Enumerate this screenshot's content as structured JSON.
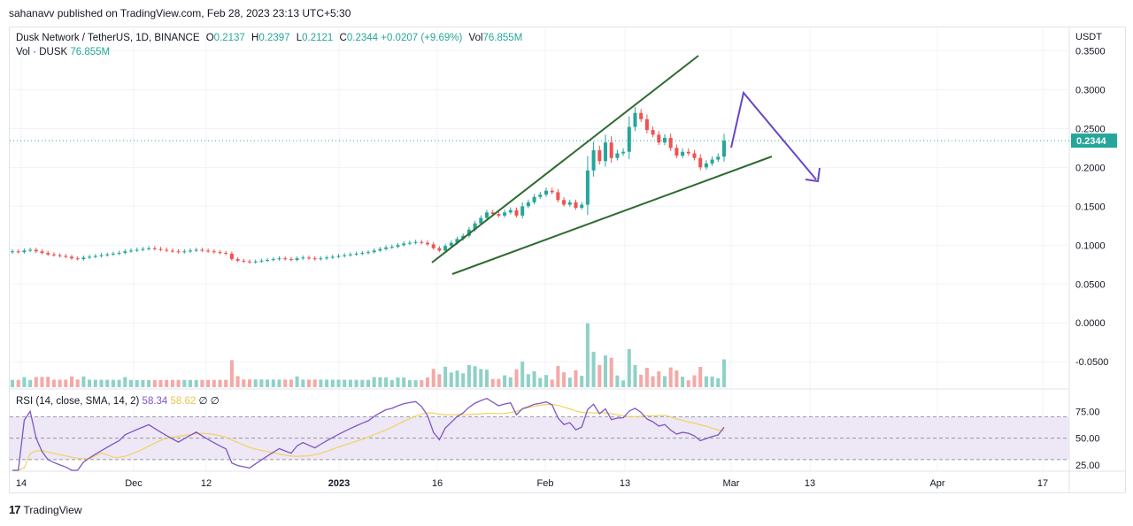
{
  "header": {
    "published": "sahanavv published on TradingView.com, Feb 28, 2023 23:13 UTC+5:30"
  },
  "legend": {
    "symbol": "Dusk Network / TetherUS, 1D, BINANCE",
    "open_label": "O",
    "open": "0.2137",
    "high_label": "H",
    "high": "0.2397",
    "low_label": "L",
    "low": "0.2121",
    "close_label": "C",
    "close": "0.2344",
    "change": "+0.0207 (+9.69%)",
    "vol_label": "Vol",
    "vol": "76.855M",
    "vol_series_label": "Vol · DUSK",
    "vol_series": "76.855M"
  },
  "rsi_legend": {
    "label": "RSI (14, close, SMA, 14, 2)",
    "rsi": "58.34",
    "sma": "58.62",
    "d1": "∅",
    "d2": "∅"
  },
  "footer": {
    "brand": "TradingView",
    "logo_glyph": "17"
  },
  "colors": {
    "up": "#26a69a",
    "down": "#ef5350",
    "up_vol": "#8fd1c7",
    "down_vol": "#f4a9a6",
    "trendline": "#2e6b30",
    "arrow": "#6a45c8",
    "rsi": "#7e57c2",
    "rsi_sma": "#f2d25f",
    "rsi_band": "#ede7f6"
  },
  "chart_data": [
    {
      "type": "candlestick",
      "title": "Dusk Network / TetherUS, 1D, BINANCE",
      "y_axis_unit": "USDT",
      "yticks": [
        "0.3500",
        "0.3000",
        "0.2500",
        "0.2000",
        "0.1500",
        "0.1000",
        "0.0500",
        "0.0000",
        "-0.0500"
      ],
      "ylim": [
        -0.085,
        0.38
      ],
      "current_price": "0.2344",
      "xticks": [
        "14",
        "Dec",
        "12",
        "2023",
        "16",
        "Feb",
        "13",
        "Mar",
        "13",
        "Apr",
        "17"
      ],
      "close": [
        0.092,
        0.091,
        0.093,
        0.094,
        0.092,
        0.09,
        0.088,
        0.087,
        0.086,
        0.085,
        0.083,
        0.082,
        0.084,
        0.085,
        0.086,
        0.087,
        0.088,
        0.089,
        0.09,
        0.092,
        0.093,
        0.094,
        0.095,
        0.096,
        0.095,
        0.094,
        0.093,
        0.092,
        0.091,
        0.092,
        0.093,
        0.094,
        0.093,
        0.092,
        0.091,
        0.09,
        0.089,
        0.082,
        0.08,
        0.079,
        0.078,
        0.079,
        0.08,
        0.081,
        0.082,
        0.083,
        0.082,
        0.081,
        0.083,
        0.084,
        0.083,
        0.082,
        0.083,
        0.084,
        0.085,
        0.086,
        0.087,
        0.088,
        0.089,
        0.09,
        0.091,
        0.093,
        0.095,
        0.097,
        0.098,
        0.1,
        0.102,
        0.103,
        0.104,
        0.103,
        0.101,
        0.096,
        0.093,
        0.099,
        0.103,
        0.108,
        0.112,
        0.12,
        0.128,
        0.135,
        0.142,
        0.14,
        0.138,
        0.142,
        0.145,
        0.138,
        0.15,
        0.155,
        0.162,
        0.165,
        0.17,
        0.168,
        0.158,
        0.152,
        0.155,
        0.148,
        0.152,
        0.196,
        0.222,
        0.208,
        0.232,
        0.212,
        0.218,
        0.22,
        0.252,
        0.27,
        0.262,
        0.248,
        0.242,
        0.232,
        0.238,
        0.225,
        0.215,
        0.22,
        0.218,
        0.212,
        0.2,
        0.205,
        0.21,
        0.2137,
        0.2344
      ],
      "volume_scale_max": 0.04
    },
    {
      "type": "line",
      "title": "RSI (14, close, SMA, 14, 2)",
      "yticks": [
        "75.00",
        "50.00",
        "25.00"
      ],
      "ylim": [
        20,
        95
      ],
      "bands": [
        30,
        50,
        70
      ],
      "series": [
        {
          "name": "RSI",
          "last": 58.34
        },
        {
          "name": "SMA",
          "last": 58.62
        }
      ]
    }
  ]
}
